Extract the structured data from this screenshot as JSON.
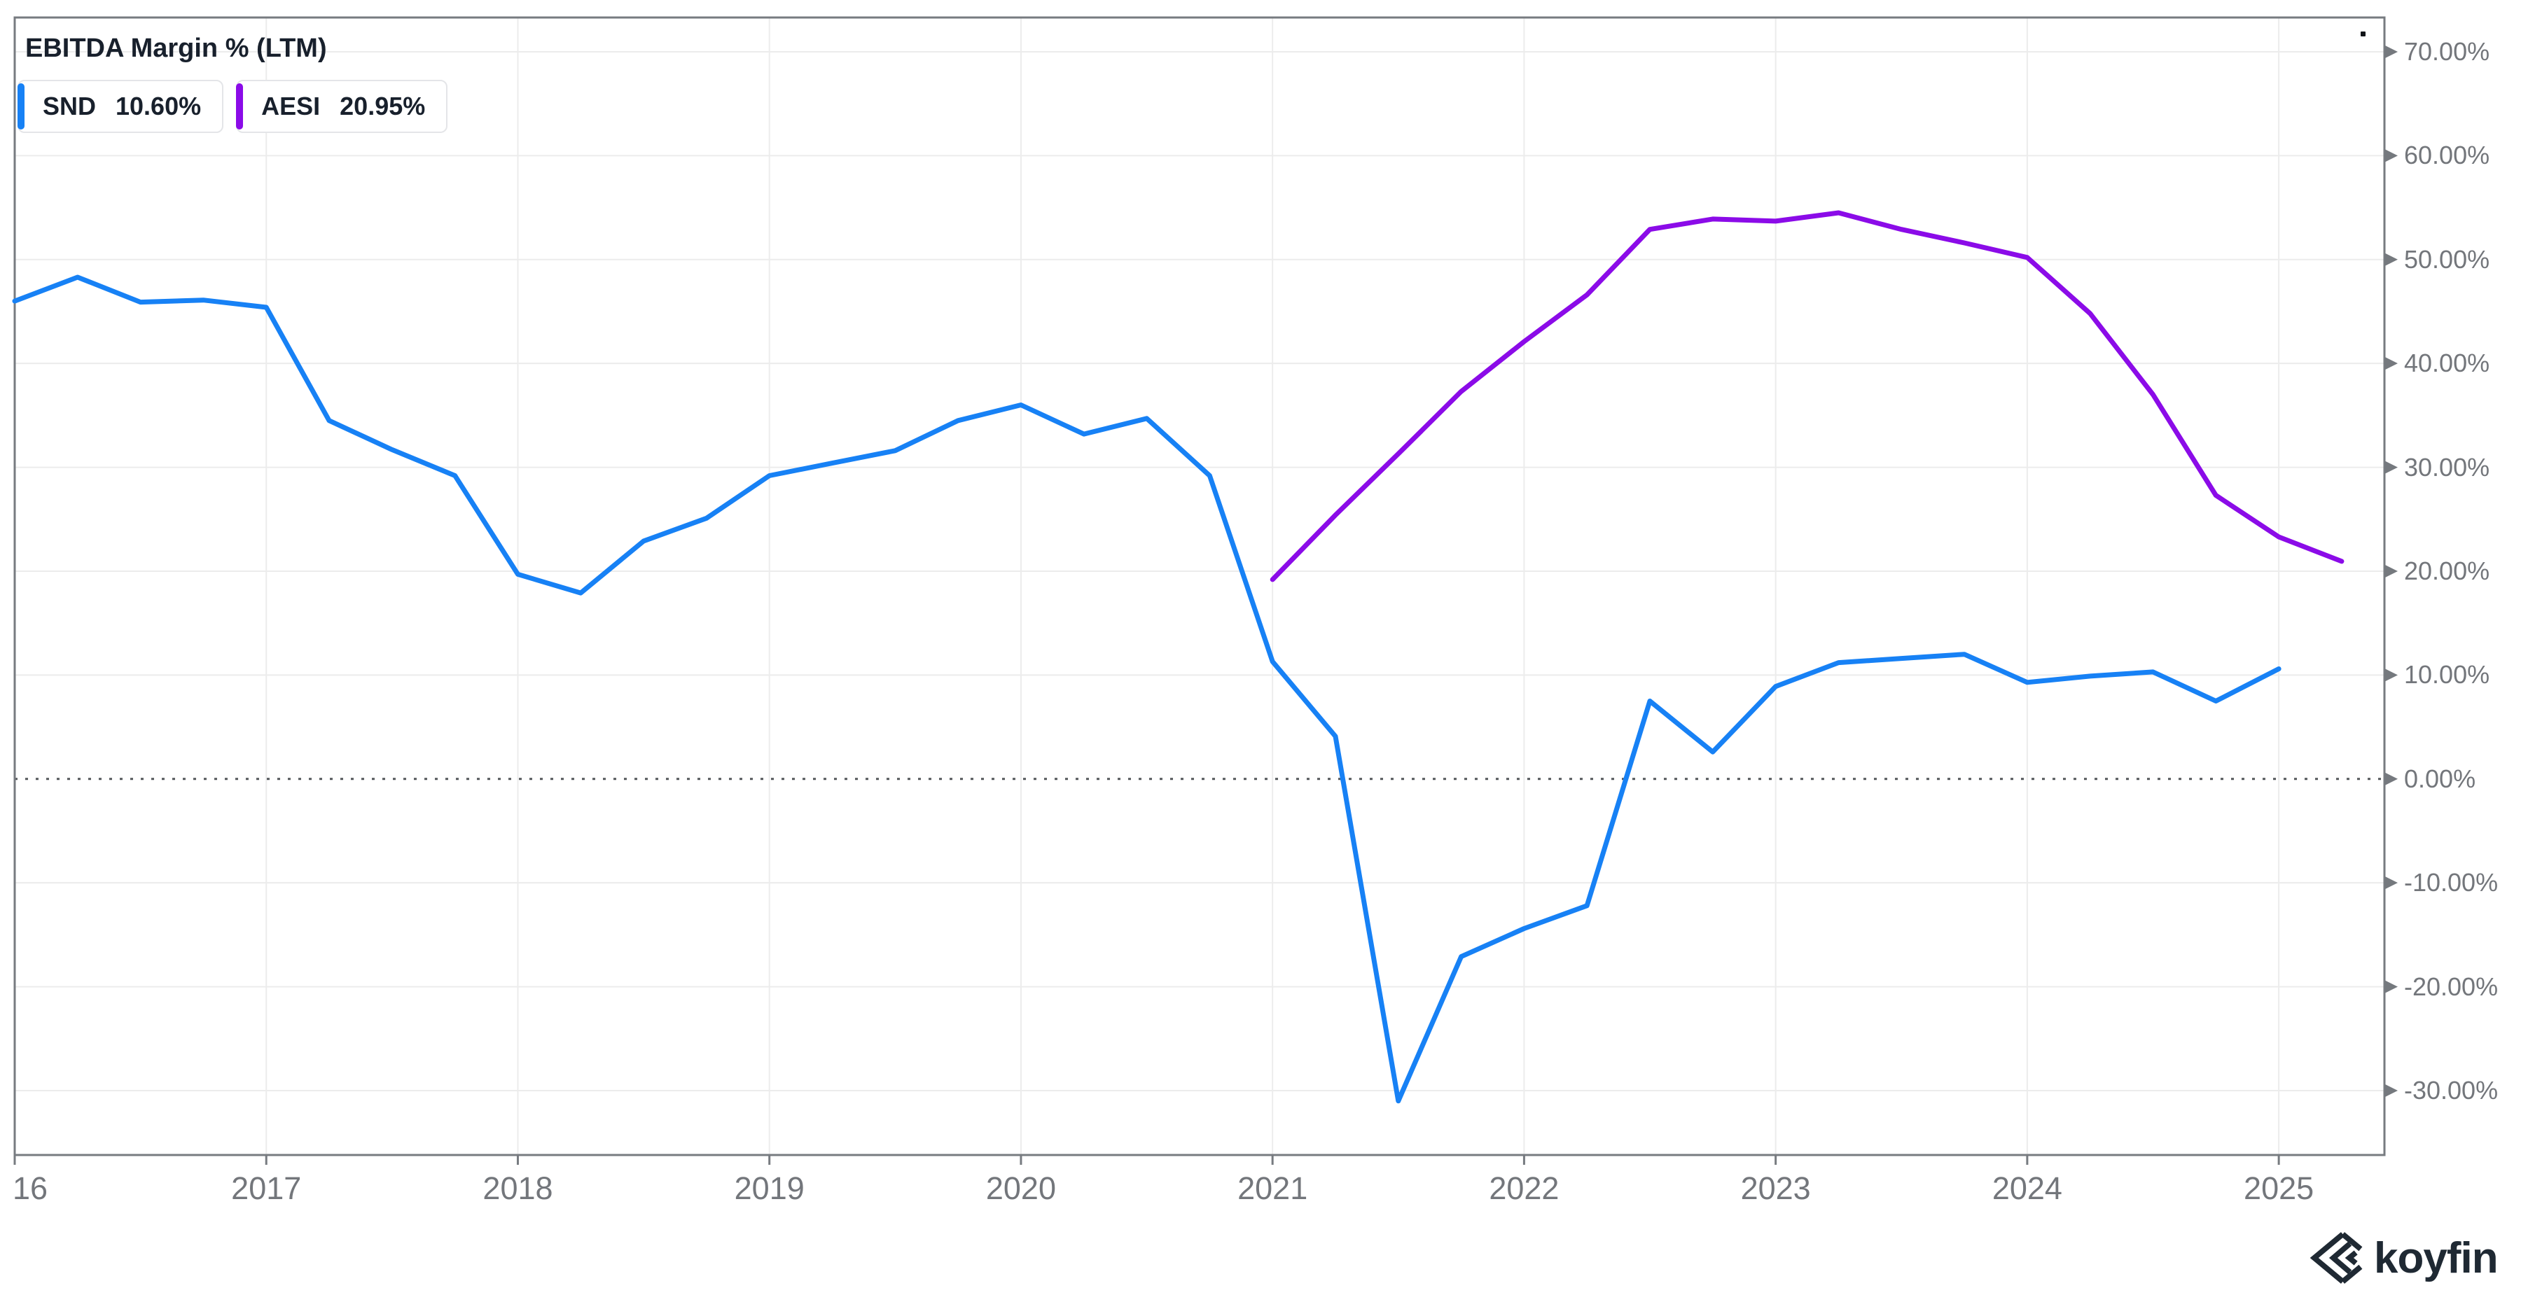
{
  "header": {
    "title": "EBITDA Margin % (LTM)"
  },
  "legend": [
    {
      "ticker": "SND",
      "value": "10.60%",
      "color": "#1781f5"
    },
    {
      "ticker": "AESI",
      "value": "20.95%",
      "color": "#8b0be8"
    }
  ],
  "chart_data": {
    "type": "line",
    "title": "EBITDA Margin % (LTM)",
    "xlabel": "",
    "ylabel": "EBITDA Margin %",
    "x_range": [
      2016,
      2025.42
    ],
    "y_range": [
      -36.2,
      73.3
    ],
    "grid": true,
    "legend_position": "top-left",
    "zero_line_style": "dotted",
    "y_ticks": [
      {
        "value": 70,
        "label": "70.00%"
      },
      {
        "value": 60,
        "label": "60.00%"
      },
      {
        "value": 50,
        "label": "50.00%"
      },
      {
        "value": 40,
        "label": "40.00%"
      },
      {
        "value": 30,
        "label": "30.00%"
      },
      {
        "value": 20,
        "label": "20.00%"
      },
      {
        "value": 10,
        "label": "10.00%"
      },
      {
        "value": 0,
        "label": "0.00%"
      },
      {
        "value": -10,
        "label": "-10.00%"
      },
      {
        "value": -20,
        "label": "-20.00%"
      },
      {
        "value": -30,
        "label": "-30.00%"
      }
    ],
    "x_ticks": [
      {
        "value": 2016,
        "label": "16"
      },
      {
        "value": 2017,
        "label": "2017"
      },
      {
        "value": 2018,
        "label": "2018"
      },
      {
        "value": 2019,
        "label": "2019"
      },
      {
        "value": 2020,
        "label": "2020"
      },
      {
        "value": 2021,
        "label": "2021"
      },
      {
        "value": 2022,
        "label": "2022"
      },
      {
        "value": 2023,
        "label": "2023"
      },
      {
        "value": 2024,
        "label": "2024"
      },
      {
        "value": 2025,
        "label": "2025"
      }
    ],
    "series": [
      {
        "name": "SND",
        "color": "#1781f5",
        "x": [
          2016.0,
          2016.25,
          2016.5,
          2016.75,
          2017.0,
          2017.25,
          2017.5,
          2017.75,
          2018.0,
          2018.25,
          2018.5,
          2018.75,
          2019.0,
          2019.25,
          2019.5,
          2019.75,
          2020.0,
          2020.25,
          2020.5,
          2020.75,
          2021.0,
          2021.25,
          2021.5,
          2021.75,
          2022.0,
          2022.25,
          2022.5,
          2022.75,
          2023.0,
          2023.25,
          2023.5,
          2023.75,
          2024.0,
          2024.25,
          2024.5,
          2024.75,
          2025.0
        ],
        "values": [
          46.0,
          48.3,
          45.9,
          46.1,
          45.4,
          34.5,
          31.7,
          29.2,
          19.7,
          17.9,
          22.9,
          25.1,
          29.2,
          30.4,
          31.6,
          34.5,
          36.0,
          33.2,
          34.7,
          29.2,
          11.3,
          4.1,
          -31.0,
          -17.1,
          -14.4,
          -12.2,
          7.5,
          2.6,
          8.9,
          11.2,
          11.6,
          12.0,
          9.3,
          9.9,
          10.3,
          7.5,
          10.6
        ]
      },
      {
        "name": "AESI",
        "color": "#8b0be8",
        "x": [
          2021.0,
          2021.25,
          2021.5,
          2021.75,
          2022.0,
          2022.25,
          2022.5,
          2022.75,
          2023.0,
          2023.25,
          2023.5,
          2023.75,
          2024.0,
          2024.25,
          2024.5,
          2024.75,
          2025.0,
          2025.25
        ],
        "values": [
          19.2,
          25.4,
          31.3,
          37.3,
          42.1,
          46.6,
          52.9,
          53.9,
          53.7,
          54.5,
          52.9,
          51.6,
          50.2,
          44.8,
          37.0,
          27.3,
          23.3,
          20.95
        ]
      }
    ],
    "colors": {
      "grid": "#ececec",
      "frame": "#777b80",
      "zero_line": "#53565a",
      "tick_text": "#73767b"
    }
  },
  "watermark": {
    "text": "koyfin"
  }
}
